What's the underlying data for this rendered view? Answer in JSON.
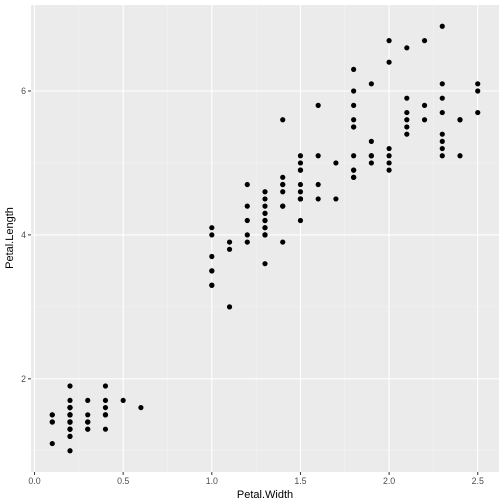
{
  "chart_data": {
    "type": "scatter",
    "title": "",
    "xlabel": "Petal.Width",
    "ylabel": "Petal.Length",
    "xlim": [
      0.1,
      2.5
    ],
    "ylim": [
      1.0,
      6.9
    ],
    "x_ticks": [
      0.0,
      0.5,
      1.0,
      1.5,
      2.0,
      2.5
    ],
    "x_tick_labels": [
      "0.0",
      "0.5",
      "1.0",
      "1.5",
      "2.0",
      "2.5"
    ],
    "y_ticks": [
      2,
      4,
      6
    ],
    "y_tick_labels": [
      "2",
      "4",
      "6"
    ],
    "grid": true,
    "legend": "none",
    "colors": {
      "panel": "#ebebeb",
      "grid_major": "#ffffff",
      "point": "#000000",
      "tick_text": "#4d4d4d"
    },
    "points": [
      [
        0.2,
        1.4
      ],
      [
        0.2,
        1.4
      ],
      [
        0.2,
        1.3
      ],
      [
        0.2,
        1.5
      ],
      [
        0.2,
        1.4
      ],
      [
        0.4,
        1.7
      ],
      [
        0.3,
        1.4
      ],
      [
        0.2,
        1.5
      ],
      [
        0.2,
        1.4
      ],
      [
        0.1,
        1.5
      ],
      [
        0.2,
        1.5
      ],
      [
        0.2,
        1.6
      ],
      [
        0.1,
        1.4
      ],
      [
        0.1,
        1.1
      ],
      [
        0.2,
        1.2
      ],
      [
        0.4,
        1.5
      ],
      [
        0.4,
        1.3
      ],
      [
        0.3,
        1.4
      ],
      [
        0.3,
        1.7
      ],
      [
        0.3,
        1.5
      ],
      [
        0.2,
        1.7
      ],
      [
        0.4,
        1.5
      ],
      [
        0.2,
        1.0
      ],
      [
        0.5,
        1.7
      ],
      [
        0.2,
        1.9
      ],
      [
        0.2,
        1.6
      ],
      [
        0.4,
        1.6
      ],
      [
        0.2,
        1.5
      ],
      [
        0.2,
        1.4
      ],
      [
        0.2,
        1.6
      ],
      [
        0.2,
        1.6
      ],
      [
        0.4,
        1.5
      ],
      [
        0.1,
        1.5
      ],
      [
        0.2,
        1.4
      ],
      [
        0.2,
        1.5
      ],
      [
        0.2,
        1.2
      ],
      [
        0.2,
        1.3
      ],
      [
        0.1,
        1.4
      ],
      [
        0.2,
        1.3
      ],
      [
        0.2,
        1.5
      ],
      [
        0.3,
        1.3
      ],
      [
        0.3,
        1.3
      ],
      [
        0.2,
        1.3
      ],
      [
        0.6,
        1.6
      ],
      [
        0.4,
        1.9
      ],
      [
        0.3,
        1.4
      ],
      [
        0.2,
        1.6
      ],
      [
        0.2,
        1.4
      ],
      [
        0.2,
        1.5
      ],
      [
        0.2,
        1.4
      ],
      [
        1.4,
        4.7
      ],
      [
        1.5,
        4.5
      ],
      [
        1.5,
        4.9
      ],
      [
        1.3,
        4.0
      ],
      [
        1.5,
        4.6
      ],
      [
        1.3,
        4.5
      ],
      [
        1.6,
        4.7
      ],
      [
        1.0,
        3.3
      ],
      [
        1.3,
        4.6
      ],
      [
        1.4,
        3.9
      ],
      [
        1.0,
        3.5
      ],
      [
        1.5,
        4.2
      ],
      [
        1.0,
        4.0
      ],
      [
        1.4,
        4.7
      ],
      [
        1.3,
        3.6
      ],
      [
        1.4,
        4.4
      ],
      [
        1.5,
        4.5
      ],
      [
        1.0,
        4.1
      ],
      [
        1.5,
        4.5
      ],
      [
        1.1,
        3.9
      ],
      [
        1.8,
        4.8
      ],
      [
        1.3,
        4.0
      ],
      [
        1.5,
        4.9
      ],
      [
        1.2,
        4.7
      ],
      [
        1.3,
        4.3
      ],
      [
        1.4,
        4.4
      ],
      [
        1.4,
        4.8
      ],
      [
        1.7,
        5.0
      ],
      [
        1.5,
        4.5
      ],
      [
        1.0,
        3.5
      ],
      [
        1.1,
        3.8
      ],
      [
        1.0,
        3.7
      ],
      [
        1.2,
        3.9
      ],
      [
        1.6,
        5.1
      ],
      [
        1.5,
        4.5
      ],
      [
        1.6,
        4.5
      ],
      [
        1.5,
        4.7
      ],
      [
        1.3,
        4.4
      ],
      [
        1.3,
        4.1
      ],
      [
        1.3,
        4.0
      ],
      [
        1.2,
        4.4
      ],
      [
        1.4,
        4.6
      ],
      [
        1.2,
        4.0
      ],
      [
        1.0,
        3.3
      ],
      [
        1.3,
        4.2
      ],
      [
        1.2,
        4.2
      ],
      [
        1.3,
        4.2
      ],
      [
        1.3,
        4.3
      ],
      [
        1.1,
        3.0
      ],
      [
        1.3,
        4.1
      ],
      [
        2.5,
        6.0
      ],
      [
        1.9,
        5.1
      ],
      [
        2.1,
        5.9
      ],
      [
        1.8,
        5.6
      ],
      [
        2.2,
        5.8
      ],
      [
        2.1,
        6.6
      ],
      [
        1.7,
        4.5
      ],
      [
        1.8,
        6.3
      ],
      [
        1.8,
        5.8
      ],
      [
        2.5,
        6.1
      ],
      [
        2.0,
        5.1
      ],
      [
        1.9,
        5.3
      ],
      [
        2.1,
        5.5
      ],
      [
        2.0,
        5.0
      ],
      [
        2.4,
        5.1
      ],
      [
        2.3,
        5.3
      ],
      [
        1.8,
        5.5
      ],
      [
        2.2,
        6.7
      ],
      [
        2.3,
        6.9
      ],
      [
        1.5,
        5.0
      ],
      [
        2.3,
        5.7
      ],
      [
        2.0,
        4.9
      ],
      [
        2.0,
        6.7
      ],
      [
        1.8,
        4.9
      ],
      [
        2.1,
        5.7
      ],
      [
        1.8,
        6.0
      ],
      [
        1.8,
        4.8
      ],
      [
        1.8,
        4.9
      ],
      [
        2.1,
        5.6
      ],
      [
        1.6,
        5.8
      ],
      [
        1.9,
        6.1
      ],
      [
        2.0,
        6.4
      ],
      [
        2.2,
        5.6
      ],
      [
        1.5,
        5.1
      ],
      [
        1.4,
        5.6
      ],
      [
        2.3,
        6.1
      ],
      [
        2.4,
        5.6
      ],
      [
        1.8,
        5.5
      ],
      [
        1.8,
        4.8
      ],
      [
        2.1,
        5.4
      ],
      [
        2.4,
        5.6
      ],
      [
        2.3,
        5.1
      ],
      [
        1.9,
        5.1
      ],
      [
        2.3,
        5.9
      ],
      [
        2.5,
        5.7
      ],
      [
        2.3,
        5.2
      ],
      [
        1.9,
        5.0
      ],
      [
        2.0,
        5.2
      ],
      [
        2.3,
        5.4
      ],
      [
        1.8,
        5.1
      ]
    ]
  }
}
